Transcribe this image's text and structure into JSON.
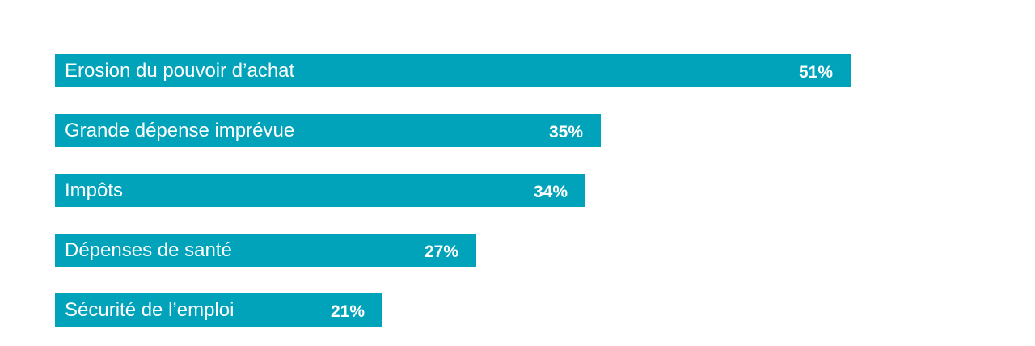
{
  "chart_data": {
    "type": "bar",
    "orientation": "horizontal",
    "categories": [
      "Erosion du pouvoir d’achat",
      "Grande dépense imprévue",
      "Impôts",
      "Dépenses de santé",
      "Sécurité de l’emploi"
    ],
    "values": [
      51,
      35,
      34,
      27,
      21
    ],
    "value_labels": [
      "51%",
      "35%",
      "34%",
      "27%",
      "21%"
    ],
    "unit": "%",
    "xlim": [
      0,
      51
    ],
    "grid": false,
    "legend": "none",
    "title": "",
    "xlabel": "",
    "ylabel": ""
  },
  "colors": {
    "bar": "#00A3BA",
    "text": "#ffffff",
    "background": "#ffffff"
  }
}
